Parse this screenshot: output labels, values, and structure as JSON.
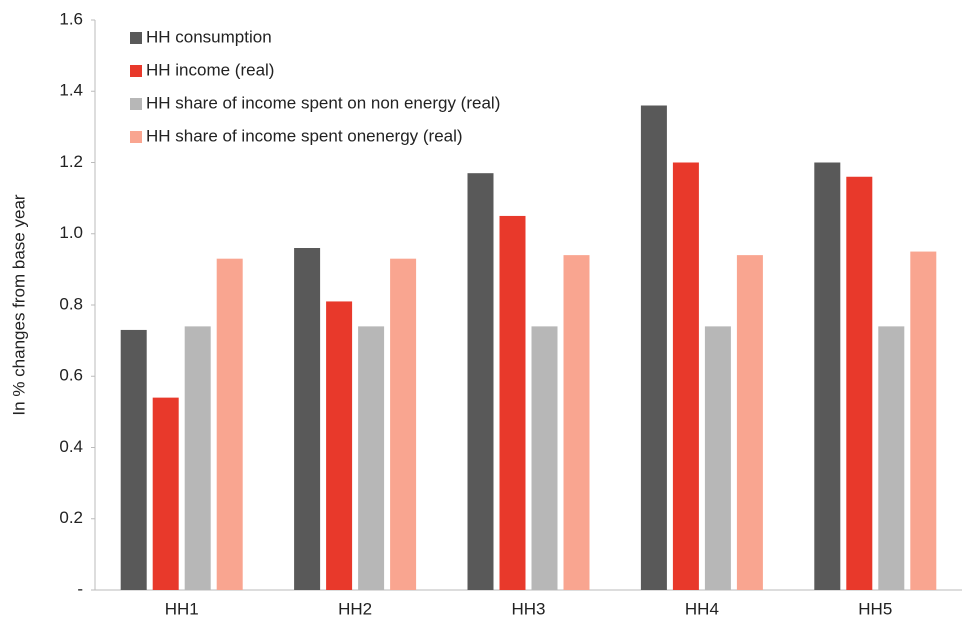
{
  "chart_data": {
    "type": "bar",
    "y_label": "In % changes from base year",
    "categories": [
      "HH1",
      "HH2",
      "HH3",
      "HH4",
      "HH5"
    ],
    "series": [
      {
        "name": "HH consumption",
        "color": "#595959",
        "values": [
          0.73,
          0.96,
          1.17,
          1.36,
          1.2
        ]
      },
      {
        "name": "HH income (real)",
        "color": "#e8392b",
        "values": [
          0.54,
          0.81,
          1.05,
          1.2,
          1.16
        ]
      },
      {
        "name": "HH share of income spent on non energy (real)",
        "color": "#b7b7b7",
        "values": [
          0.74,
          0.74,
          0.74,
          0.74,
          0.74
        ]
      },
      {
        "name": "HH share of income spent onenergy (real)",
        "color": "#f9a590",
        "values": [
          0.93,
          0.93,
          0.94,
          0.94,
          0.95
        ]
      }
    ],
    "ylim": [
      0,
      1.6
    ],
    "yticks": [
      {
        "value": 0,
        "label": "-"
      },
      0.2,
      0.4,
      0.6,
      0.8,
      {
        "value": 1,
        "label": "1.0"
      },
      1.2,
      1.4,
      1.6
    ],
    "legend": "top-left"
  }
}
